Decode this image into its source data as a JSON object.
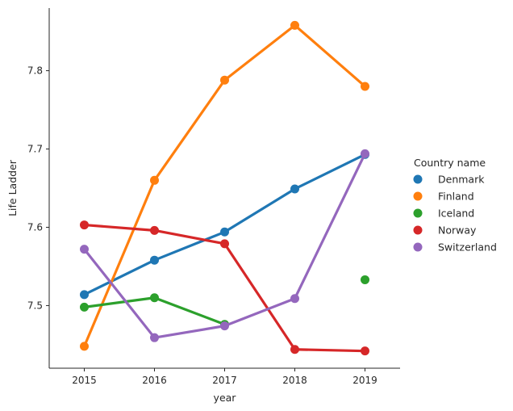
{
  "chart_data": {
    "type": "line",
    "xlabel": "year",
    "ylabel": "Life Ladder",
    "categories": [
      "2015",
      "2016",
      "2017",
      "2018",
      "2019"
    ],
    "ylim": [
      7.42,
      7.88
    ],
    "yticks": [
      7.5,
      7.6,
      7.7,
      7.8
    ],
    "ytick_labels": [
      "7.5",
      "7.6",
      "7.7",
      "7.8"
    ],
    "grid": false,
    "legend": {
      "title": "Country name",
      "placement": "right"
    },
    "series": [
      {
        "name": "Denmark",
        "color": "#1f77b4",
        "values": [
          7.514,
          7.558,
          7.594,
          7.649,
          7.693
        ]
      },
      {
        "name": "Finland",
        "color": "#ff7f0e",
        "values": [
          7.448,
          7.66,
          7.788,
          7.858,
          7.78
        ]
      },
      {
        "name": "Iceland",
        "color": "#2ca02c",
        "values": [
          7.498,
          7.51,
          7.476,
          null,
          7.533
        ]
      },
      {
        "name": "Norway",
        "color": "#d62728",
        "values": [
          7.603,
          7.596,
          7.579,
          7.444,
          7.442
        ]
      },
      {
        "name": "Switzerland",
        "color": "#9467bd",
        "values": [
          7.572,
          7.459,
          7.474,
          7.509,
          7.694
        ]
      }
    ]
  }
}
